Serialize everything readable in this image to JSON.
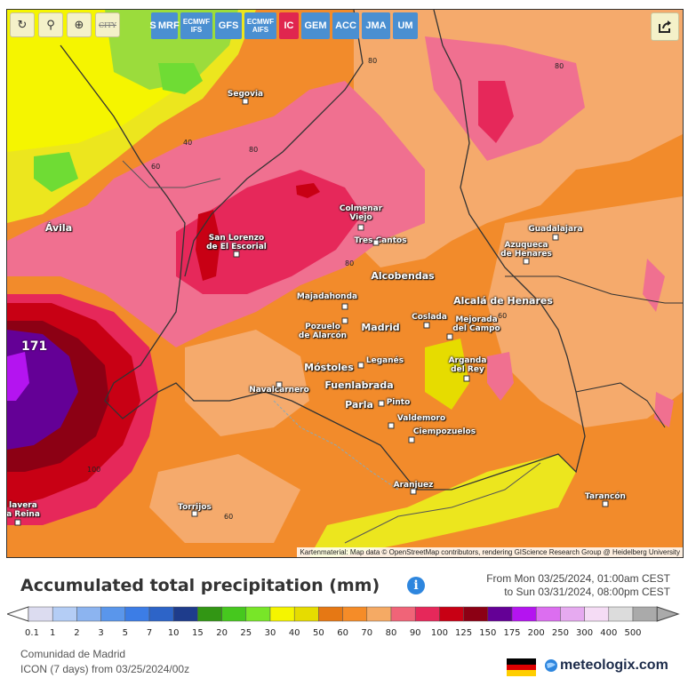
{
  "toolbar": {
    "buttons": [
      {
        "icon": "refresh-icon",
        "glyph": "↻"
      },
      {
        "icon": "location-pin-icon",
        "glyph": "⚲"
      },
      {
        "icon": "zoom-icon",
        "glyph": "⊕"
      },
      {
        "icon": "city-toggle-icon",
        "glyph": "CITY"
      }
    ]
  },
  "models": [
    {
      "label": "S MRF",
      "active": false
    },
    {
      "label": "ECMWF\nIFS",
      "active": false
    },
    {
      "label": "GFS",
      "active": false
    },
    {
      "label": "ECMWF\nAIFS",
      "active": false
    },
    {
      "label": "IC",
      "active": true
    },
    {
      "label": "GEM",
      "active": false
    },
    {
      "label": "ACC",
      "active": false
    },
    {
      "label": "JMA",
      "active": false
    },
    {
      "label": "UM",
      "active": false
    }
  ],
  "map": {
    "attribution": "Kartenmaterial: Map data © OpenStreetMap contributors, rendering GIScience Research Group @ Heidelberg University",
    "max_value": "171",
    "isolines": [
      "80",
      "80",
      "40",
      "60",
      "80",
      "80",
      "60",
      "100",
      "60"
    ],
    "cities": [
      {
        "name": "Segovia",
        "big": false
      },
      {
        "name": "Ávila",
        "big": true
      },
      {
        "name": "San Lorenzo\nde El Escorial",
        "big": false
      },
      {
        "name": "Colmenar\nViejo",
        "big": false
      },
      {
        "name": "Tres Cantos",
        "big": false
      },
      {
        "name": "Alcobendas",
        "big": true
      },
      {
        "name": "Guadalajara",
        "big": false
      },
      {
        "name": "Azuqueca\nde Henares",
        "big": false
      },
      {
        "name": "Majadahonda",
        "big": false
      },
      {
        "name": "Alcalá de Henares",
        "big": true
      },
      {
        "name": "Pozuelo\nde Alarcón",
        "big": false
      },
      {
        "name": "Madrid",
        "big": true
      },
      {
        "name": "Coslada",
        "big": false
      },
      {
        "name": "Mejorada\ndel Campo",
        "big": false
      },
      {
        "name": "Móstoles",
        "big": true
      },
      {
        "name": "Leganés",
        "big": false
      },
      {
        "name": "Arganda\ndel Rey",
        "big": false
      },
      {
        "name": "Navalcarnero",
        "big": false
      },
      {
        "name": "Fuenlabrada",
        "big": true
      },
      {
        "name": "Parla",
        "big": true
      },
      {
        "name": "Pinto",
        "big": false
      },
      {
        "name": "Valdemoro",
        "big": false
      },
      {
        "name": "Ciempozuelos",
        "big": false
      },
      {
        "name": "Aranjuez",
        "big": false
      },
      {
        "name": "Torrijos",
        "big": false
      },
      {
        "name": "Tarancón",
        "big": false
      },
      {
        "name": "lavera\na Reina",
        "big": false
      }
    ]
  },
  "legend": {
    "title": "Accumulated total precipitation (mm)",
    "period_from": "From Mon 03/25/2024, 01:00am CEST",
    "period_to": "to Sun 03/31/2024, 08:00pm CEST",
    "ticks": [
      "0.1",
      "1",
      "2",
      "3",
      "5",
      "7",
      "10",
      "15",
      "20",
      "25",
      "30",
      "40",
      "50",
      "60",
      "70",
      "80",
      "90",
      "100",
      "125",
      "150",
      "175",
      "200",
      "250",
      "300",
      "400",
      "500"
    ],
    "colors": [
      "#dcdcf0",
      "#b4cdf5",
      "#8cb4f0",
      "#5a96eb",
      "#3c7de6",
      "#2d64c8",
      "#1e3c8c",
      "#329614",
      "#46c81e",
      "#78e628",
      "#f5f500",
      "#e6dc00",
      "#e67814",
      "#f58c28",
      "#f5aa64",
      "#f06478",
      "#e6285a",
      "#c80014",
      "#8c0014",
      "#640096",
      "#b414f0",
      "#dc6ef0",
      "#e6aaf0",
      "#f5dcf5",
      "#dcdcdc",
      "#aaaaaa"
    ]
  },
  "footer": {
    "region": "Comunidad de Madrid",
    "model_run": "ICON (7 days) from 03/25/2024/00z"
  },
  "brand": {
    "name": "meteologix.com"
  }
}
